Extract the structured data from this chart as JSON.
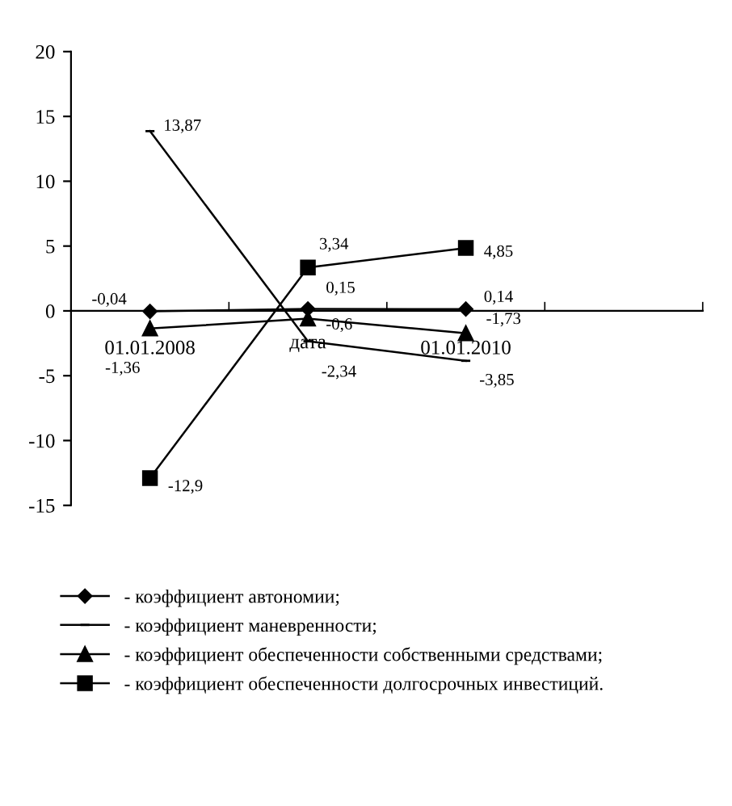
{
  "chart_data": {
    "type": "line",
    "xlabel": "дата",
    "categories": [
      "01.01.2008",
      null,
      "01.01.2010",
      null
    ],
    "ylim": [
      -15,
      20
    ],
    "yticks": [
      -15,
      -10,
      -5,
      0,
      5,
      10,
      15,
      20
    ],
    "grid": false,
    "legend": "bottom",
    "series": [
      {
        "name": "- коэффициент автономии;",
        "color": "#000000",
        "marker": "diamond",
        "values": [
          -0.04,
          0.15,
          0.14,
          null
        ],
        "value_labels": [
          "-0,04",
          "0,15",
          "0,14",
          null
        ]
      },
      {
        "name": "- коэффициент маневренности;",
        "color": "#000000",
        "marker": "none",
        "values": [
          13.87,
          -2.34,
          -3.85,
          null
        ],
        "value_labels": [
          "13,87",
          "-2,34",
          "-3,85",
          null
        ]
      },
      {
        "name": "- коэффициент обеспеченности собственными средствами;",
        "color": "#000000",
        "marker": "triangle",
        "values": [
          -1.36,
          -0.6,
          -1.73,
          null
        ],
        "value_labels": [
          "-1,36",
          "-0,6",
          "-1,73",
          null
        ]
      },
      {
        "name": "- коэффициент обеспеченности долгосрочных инвестиций.",
        "color": "#000000",
        "marker": "square",
        "values": [
          -12.9,
          3.34,
          4.85,
          null
        ],
        "value_labels": [
          "-12,9",
          "3,34",
          "4,85",
          null
        ]
      }
    ]
  }
}
